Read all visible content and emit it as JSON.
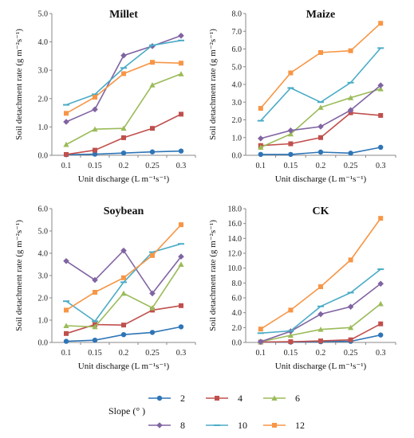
{
  "legend": {
    "title": "Slope (°  )"
  },
  "colors": {
    "2": "#2e75b6",
    "4": "#c0504d",
    "6": "#9bbb59",
    "8": "#8064a2",
    "10": "#4bacc6",
    "12": "#f79646"
  },
  "chart_data": [
    {
      "type": "line",
      "title": "Millet",
      "xlabel": "Unit discharge (L m⁻¹s⁻¹)",
      "ylabel": "Soil detachment rate  (g m⁻²s⁻¹)",
      "x": [
        "0.1",
        "0.15",
        "0.2",
        "0.25",
        "0.3"
      ],
      "ylim": [
        0,
        5
      ],
      "yticks": [
        "0.0",
        "1.0",
        "2.0",
        "3.0",
        "4.0",
        "5.0"
      ],
      "series": [
        {
          "name": "2",
          "values": [
            0.02,
            0.04,
            0.08,
            0.12,
            0.15
          ]
        },
        {
          "name": "4",
          "values": [
            0.03,
            0.18,
            0.62,
            0.95,
            1.45
          ]
        },
        {
          "name": "6",
          "values": [
            0.38,
            0.92,
            0.95,
            2.48,
            2.87
          ]
        },
        {
          "name": "8",
          "values": [
            1.18,
            1.62,
            3.52,
            3.85,
            4.22
          ]
        },
        {
          "name": "10",
          "values": [
            1.78,
            2.15,
            3.08,
            3.88,
            4.05
          ]
        },
        {
          "name": "12",
          "values": [
            1.48,
            2.05,
            2.88,
            3.28,
            3.25
          ]
        }
      ]
    },
    {
      "type": "line",
      "title": "Maize",
      "xlabel": "Unit discharge (L m⁻¹s⁻¹)",
      "ylabel": "Soil detachment rate  (g m⁻²s⁻¹)",
      "x": [
        "0.1",
        "0.15",
        "0.2",
        "0.25",
        "0.3"
      ],
      "ylim": [
        0,
        8
      ],
      "yticks": [
        "0.0",
        "1.0",
        "2.0",
        "3.0",
        "4.0",
        "5.0",
        "6.0",
        "7.0",
        "8.0"
      ],
      "series": [
        {
          "name": "2",
          "values": [
            0.05,
            0.05,
            0.18,
            0.12,
            0.45
          ]
        },
        {
          "name": "4",
          "values": [
            0.55,
            0.65,
            1.0,
            2.4,
            2.25
          ]
        },
        {
          "name": "6",
          "values": [
            0.45,
            1.2,
            2.7,
            3.25,
            3.75
          ]
        },
        {
          "name": "8",
          "values": [
            0.95,
            1.4,
            1.62,
            2.55,
            3.95
          ]
        },
        {
          "name": "10",
          "values": [
            1.95,
            3.8,
            3.0,
            4.1,
            6.05
          ]
        },
        {
          "name": "12",
          "values": [
            2.65,
            4.65,
            5.8,
            5.9,
            7.45
          ]
        }
      ]
    },
    {
      "type": "line",
      "title": "Soybean",
      "xlabel": "Unit discharge (L m⁻¹s⁻¹)",
      "ylabel": "Soil detachment rate  (g m⁻²s⁻¹)",
      "x": [
        "0.1",
        "0.15",
        "0.2",
        "0.25",
        "0.3"
      ],
      "ylim": [
        0,
        6
      ],
      "yticks": [
        "0.0",
        "1.0",
        "2.0",
        "3.0",
        "4.0",
        "5.0",
        "6.0"
      ],
      "series": [
        {
          "name": "2",
          "values": [
            0.05,
            0.1,
            0.35,
            0.45,
            0.7
          ]
        },
        {
          "name": "4",
          "values": [
            0.4,
            0.8,
            0.78,
            1.45,
            1.65
          ]
        },
        {
          "name": "6",
          "values": [
            0.75,
            0.7,
            2.2,
            1.55,
            3.5
          ]
        },
        {
          "name": "8",
          "values": [
            3.65,
            2.8,
            4.12,
            2.2,
            3.85
          ]
        },
        {
          "name": "10",
          "values": [
            1.85,
            0.95,
            2.7,
            4.05,
            4.42
          ]
        },
        {
          "name": "12",
          "values": [
            1.45,
            2.25,
            2.9,
            3.9,
            5.28
          ]
        }
      ]
    },
    {
      "type": "line",
      "title": "CK",
      "xlabel": "Unit discharge (L m⁻¹s⁻¹)",
      "ylabel": "Soil detachment rate  (g m⁻²s⁻¹)",
      "x": [
        "0.1",
        "0.15",
        "0.2",
        "0.25",
        "0.3"
      ],
      "ylim": [
        0,
        18
      ],
      "yticks": [
        "0.0",
        "2.0",
        "4.0",
        "6.0",
        "8.0",
        "10.0",
        "12.0",
        "14.0",
        "16.0",
        "18.0"
      ],
      "series": [
        {
          "name": "2",
          "values": [
            0.05,
            0.05,
            0.1,
            0.15,
            1.0
          ]
        },
        {
          "name": "4",
          "values": [
            0.05,
            0.1,
            0.2,
            0.35,
            2.5
          ]
        },
        {
          "name": "6",
          "values": [
            0.1,
            0.95,
            1.75,
            2.0,
            5.2
          ]
        },
        {
          "name": "8",
          "values": [
            0.1,
            1.5,
            3.8,
            4.8,
            7.9
          ]
        },
        {
          "name": "10",
          "values": [
            1.25,
            1.55,
            4.85,
            6.7,
            9.85
          ]
        },
        {
          "name": "12",
          "values": [
            1.8,
            4.35,
            7.5,
            11.1,
            16.7
          ]
        }
      ]
    }
  ]
}
